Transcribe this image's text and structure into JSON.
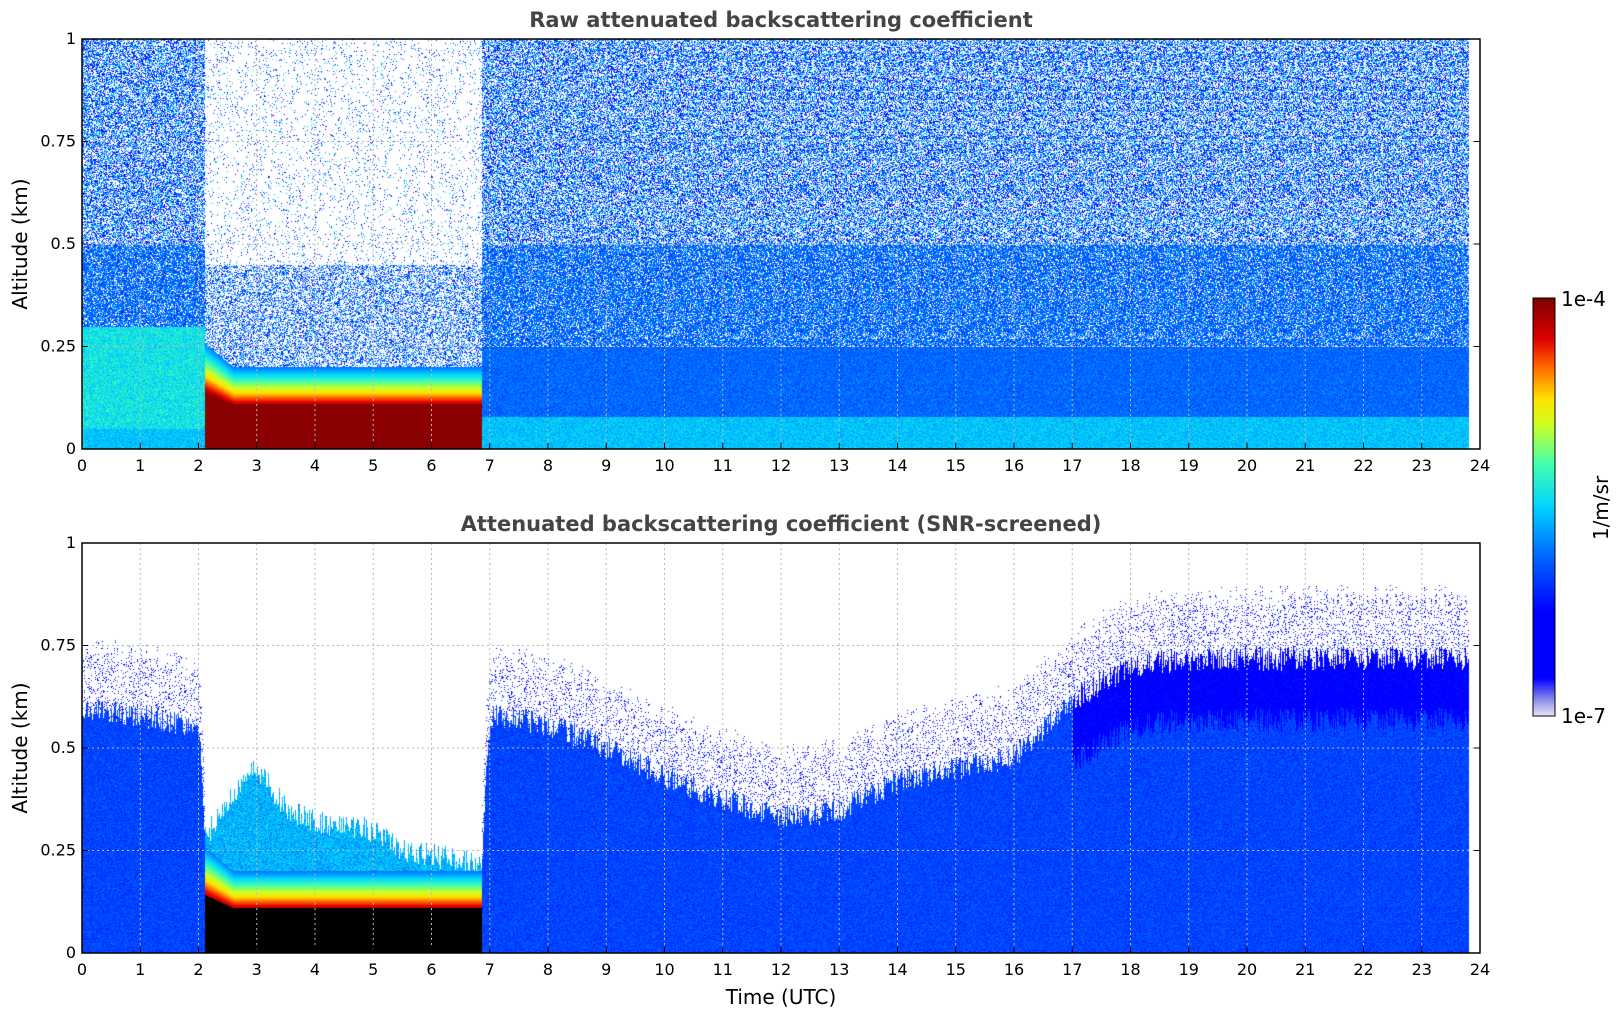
{
  "chart_data": [
    {
      "type": "heatmap",
      "title": "Raw attenuated backscattering coefficient",
      "xlabel": "",
      "ylabel": "Altitude (km)",
      "xlim": [
        0,
        24
      ],
      "ylim": [
        0,
        1
      ],
      "xticks": [
        "0",
        "1",
        "2",
        "3",
        "4",
        "5",
        "6",
        "7",
        "8",
        "9",
        "10",
        "11",
        "12",
        "13",
        "14",
        "15",
        "16",
        "17",
        "18",
        "19",
        "20",
        "21",
        "22",
        "23",
        "24"
      ],
      "yticks": [
        "0",
        "0.25",
        "0.5",
        "0.75",
        "1"
      ],
      "grid": true,
      "data_end_time": 23.8,
      "features": {
        "fog_layer": {
          "start": 2.1,
          "end": 6.85,
          "top_km": 0.2,
          "value_log10": -4.2
        },
        "signal_gap_above_fog": {
          "start": 2.1,
          "end": 6.85
        },
        "noisy_region": {
          "start": 6.85,
          "end": 23.8,
          "low_km": 0.25,
          "high_km": 1.0
        }
      }
    },
    {
      "type": "heatmap",
      "title": "Attenuated backscattering coefficient (SNR-screened)",
      "xlabel": "Time (UTC)",
      "ylabel": "Altitude (km)",
      "xlim": [
        0,
        24
      ],
      "ylim": [
        0,
        1
      ],
      "xticks": [
        "0",
        "1",
        "2",
        "3",
        "4",
        "5",
        "6",
        "7",
        "8",
        "9",
        "10",
        "11",
        "12",
        "13",
        "14",
        "15",
        "16",
        "17",
        "18",
        "19",
        "20",
        "21",
        "22",
        "23",
        "24"
      ],
      "yticks": [
        "0",
        "0.25",
        "0.5",
        "0.75",
        "1"
      ],
      "grid": true,
      "data_end_time": 23.8,
      "boundary_layer_top_km": [
        [
          0,
          0.6
        ],
        [
          1,
          0.58
        ],
        [
          2,
          0.55
        ],
        [
          2.1,
          0.28
        ],
        [
          2.5,
          0.38
        ],
        [
          3,
          0.45
        ],
        [
          3.5,
          0.35
        ],
        [
          4,
          0.32
        ],
        [
          5,
          0.3
        ],
        [
          5.5,
          0.25
        ],
        [
          6,
          0.24
        ],
        [
          6.85,
          0.22
        ],
        [
          7,
          0.58
        ],
        [
          8,
          0.56
        ],
        [
          9,
          0.5
        ],
        [
          10,
          0.43
        ],
        [
          11,
          0.38
        ],
        [
          12,
          0.33
        ],
        [
          13,
          0.35
        ],
        [
          14,
          0.42
        ],
        [
          15,
          0.45
        ],
        [
          16,
          0.48
        ],
        [
          17,
          0.62
        ],
        [
          18,
          0.7
        ],
        [
          19,
          0.72
        ],
        [
          20,
          0.72
        ],
        [
          21,
          0.72
        ],
        [
          22,
          0.72
        ],
        [
          23.8,
          0.72
        ]
      ]
    }
  ],
  "colorbar": {
    "label": "1/m/sr",
    "max_label": "1e-4",
    "min_label": "1e-7",
    "scale": "log",
    "colormap": "jet",
    "colors": [
      "#e6e6f8",
      "#0000ff",
      "#00c8ff",
      "#ffff00",
      "#ff4000",
      "#8b0000"
    ]
  }
}
